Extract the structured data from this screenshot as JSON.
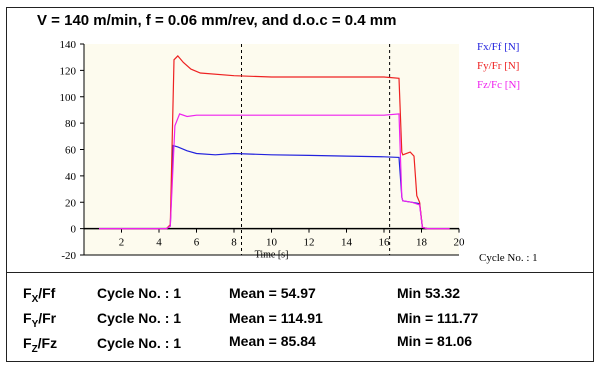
{
  "chart_data": {
    "type": "line",
    "title": "V = 140 m/min, f = 0.06 mm/rev, and d.o.c = 0.4 mm",
    "xlabel": "Time [s]",
    "ylabel": "",
    "xlim": [
      0,
      20
    ],
    "ylim": [
      -20,
      140
    ],
    "x_ticks": [
      2,
      4,
      6,
      8,
      10,
      12,
      14,
      16,
      18,
      20
    ],
    "y_ticks": [
      -20,
      0,
      20,
      40,
      60,
      80,
      100,
      120,
      140
    ],
    "grid": false,
    "legend_position": "top-right",
    "vertical_markers": [
      8.4,
      16.3
    ],
    "series": [
      {
        "name": "Fx/Ff [N]",
        "color": "#2222dd",
        "points": [
          [
            0.8,
            0
          ],
          [
            4.4,
            0
          ],
          [
            4.6,
            2
          ],
          [
            4.75,
            63
          ],
          [
            5.0,
            62
          ],
          [
            5.5,
            59
          ],
          [
            6.0,
            57
          ],
          [
            7.0,
            56
          ],
          [
            8.0,
            57
          ],
          [
            10.0,
            56
          ],
          [
            12.0,
            55.5
          ],
          [
            14.0,
            55
          ],
          [
            16.0,
            54.5
          ],
          [
            16.8,
            54
          ],
          [
            16.95,
            24
          ],
          [
            17.0,
            21
          ],
          [
            17.5,
            20
          ],
          [
            17.9,
            19
          ],
          [
            18.05,
            1
          ],
          [
            18.3,
            0
          ],
          [
            19.5,
            0
          ]
        ]
      },
      {
        "name": "Fy/Fr [N]",
        "color": "#ee2222",
        "points": [
          [
            0.8,
            0
          ],
          [
            4.4,
            0
          ],
          [
            4.6,
            3
          ],
          [
            4.8,
            128
          ],
          [
            5.0,
            131
          ],
          [
            5.3,
            126
          ],
          [
            5.7,
            121
          ],
          [
            6.2,
            118
          ],
          [
            8.0,
            116
          ],
          [
            10.0,
            115
          ],
          [
            12.0,
            115
          ],
          [
            14.0,
            115
          ],
          [
            16.0,
            115
          ],
          [
            16.8,
            114
          ],
          [
            16.95,
            58
          ],
          [
            17.0,
            56
          ],
          [
            17.4,
            58
          ],
          [
            17.6,
            55
          ],
          [
            17.75,
            25
          ],
          [
            17.9,
            20
          ],
          [
            18.05,
            1
          ],
          [
            18.3,
            0
          ],
          [
            19.5,
            0
          ]
        ]
      },
      {
        "name": "Fz/Fc [N]",
        "color": "#ee22ee",
        "points": [
          [
            0.8,
            0
          ],
          [
            4.4,
            0
          ],
          [
            4.6,
            2
          ],
          [
            4.85,
            78
          ],
          [
            5.1,
            87
          ],
          [
            5.5,
            85
          ],
          [
            6.0,
            86
          ],
          [
            8.0,
            86
          ],
          [
            10.0,
            86
          ],
          [
            12.0,
            86
          ],
          [
            14.0,
            86
          ],
          [
            16.0,
            86
          ],
          [
            16.8,
            87
          ],
          [
            16.95,
            24
          ],
          [
            17.0,
            21
          ],
          [
            17.5,
            20
          ],
          [
            17.9,
            18
          ],
          [
            18.05,
            1
          ],
          [
            18.3,
            0
          ],
          [
            19.5,
            0
          ]
        ]
      }
    ]
  },
  "cycle_label": "Cycle No. : 1",
  "stats": [
    {
      "main": "F",
      "sub": "X",
      "suffix": "/Ff",
      "cycle": "Cycle No. : 1",
      "mean": "Mean = 54.97",
      "min": "Min 53.32"
    },
    {
      "main": "F",
      "sub": "Y",
      "suffix": "/Fr",
      "cycle": "Cycle No. : 1",
      "mean": "Mean = 114.91",
      "min": "Min = 111.77"
    },
    {
      "main": "F",
      "sub": "Z",
      "suffix": "/Fz",
      "cycle": "Cycle No. : 1",
      "mean": "Mean = 85.84",
      "min": "Min = 81.06"
    }
  ]
}
